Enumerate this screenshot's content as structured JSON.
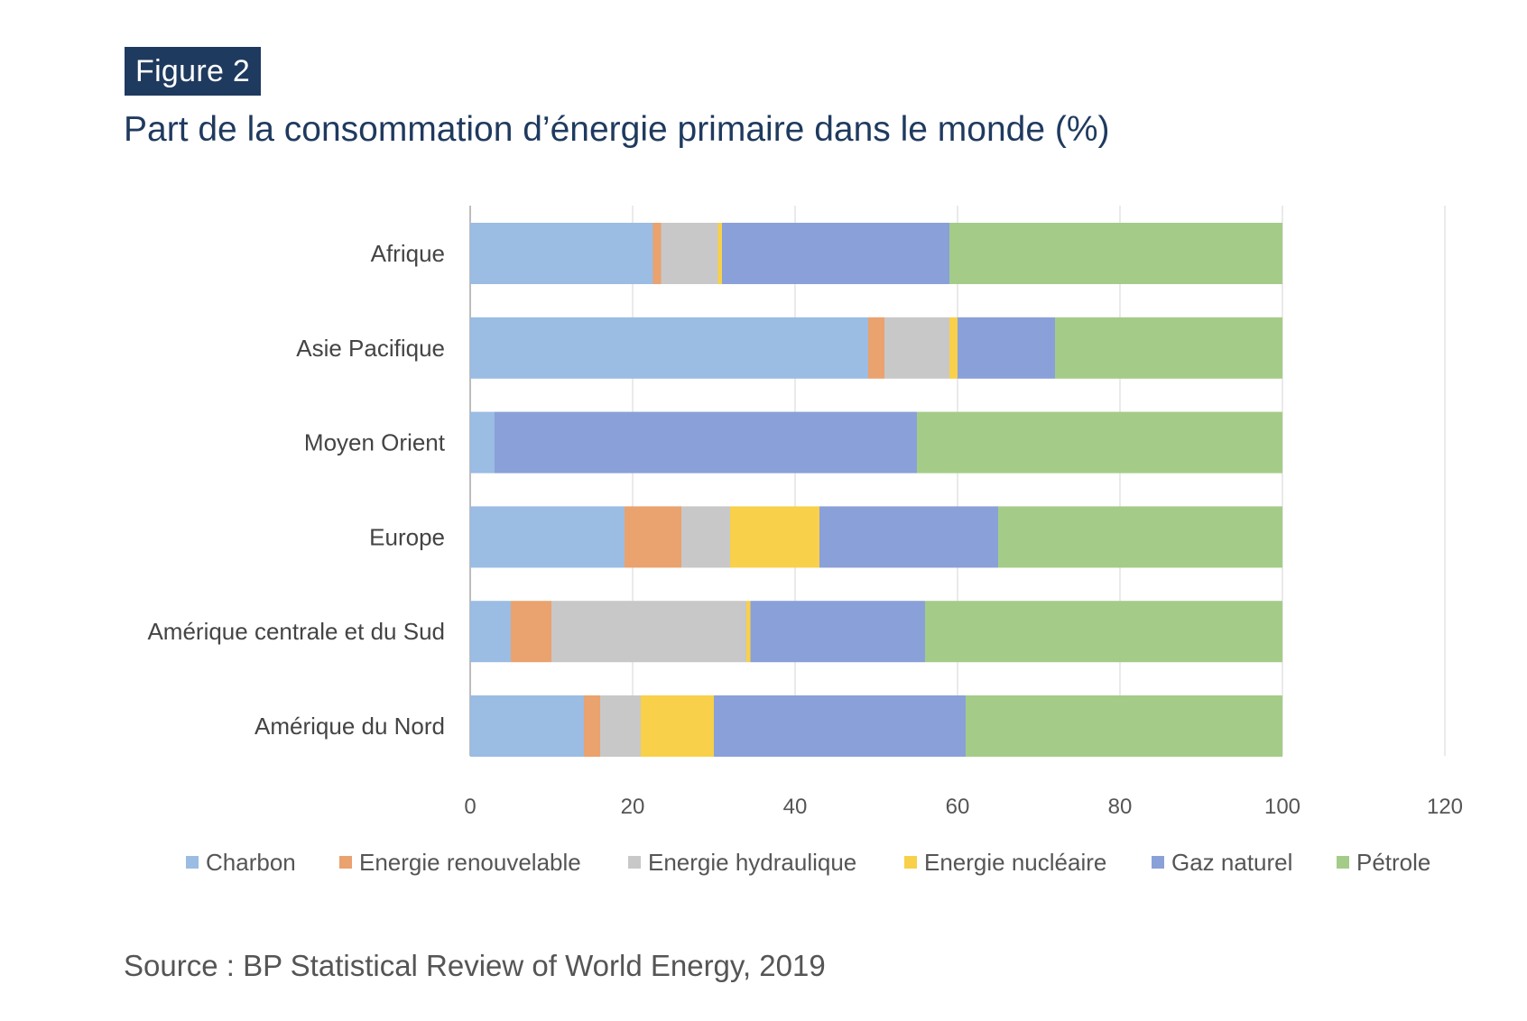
{
  "header": {
    "figure_label": "Figure 2",
    "title": "Part de la consommation d’énergie primaire dans le monde (%)"
  },
  "source": "Source : BP Statistical Review of World Energy, 2019",
  "chart_data": {
    "type": "bar",
    "orientation": "horizontal",
    "stacked": true,
    "title": "Part de la consommation d’énergie primaire dans le monde (%)",
    "xlabel": "",
    "ylabel": "",
    "xlim": [
      0,
      120
    ],
    "xticks": [
      0,
      20,
      40,
      60,
      80,
      100,
      120
    ],
    "grid": "vertical",
    "legend_position": "bottom",
    "categories": [
      "Afrique",
      "Asie Pacifique",
      "Moyen Orient",
      "Europe",
      "Amérique centrale et du Sud",
      "Amérique du Nord"
    ],
    "series": [
      {
        "name": "Charbon",
        "color": "#9bbce3",
        "values": [
          22.5,
          49,
          3,
          19,
          5,
          14
        ]
      },
      {
        "name": "Energie renouvelable",
        "color": "#eaa26e",
        "values": [
          1,
          2,
          0,
          7,
          5,
          2
        ]
      },
      {
        "name": "Energie hydraulique",
        "color": "#c8c8c8",
        "values": [
          7,
          8,
          0,
          6,
          24,
          5
        ]
      },
      {
        "name": "Energie nucléaire",
        "color": "#f8d04a",
        "values": [
          0.5,
          1,
          0,
          11,
          0.5,
          9
        ]
      },
      {
        "name": "Gaz naturel",
        "color": "#8aa0d8",
        "values": [
          28,
          12,
          52,
          22,
          21.5,
          31
        ]
      },
      {
        "name": "Pétrole",
        "color": "#a4cc88",
        "values": [
          41,
          28,
          45,
          35,
          44,
          39
        ]
      }
    ]
  }
}
